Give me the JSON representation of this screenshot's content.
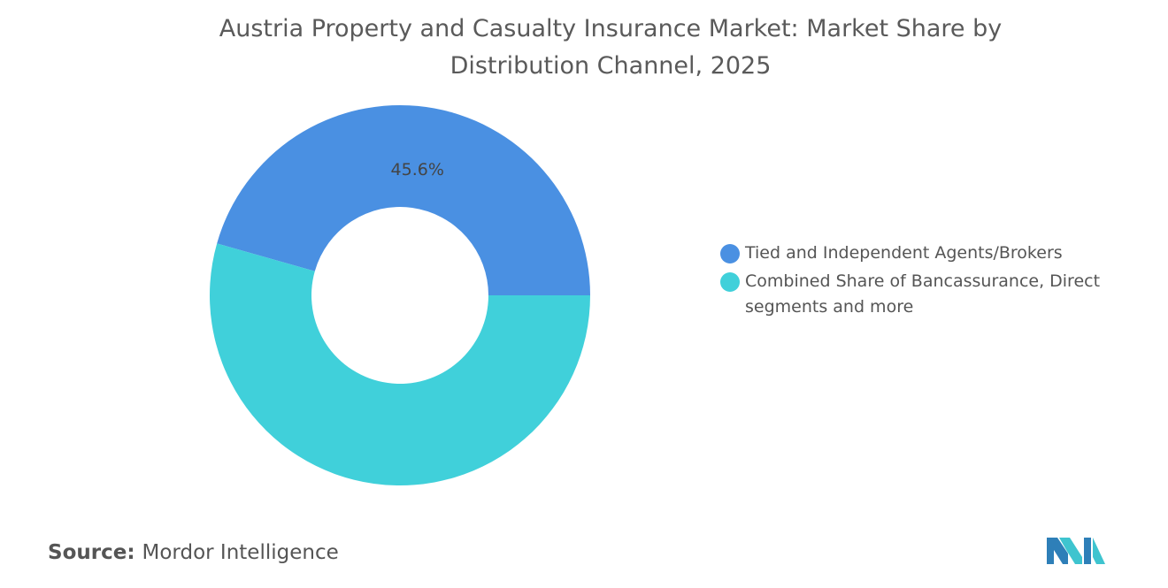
{
  "chart_data": {
    "type": "donut",
    "title": "Austria Property and Casualty Insurance Market: Market Share by Distribution Channel, 2025",
    "categories": [
      "Tied and Independent Agents/Brokers",
      "Combined Share of Bancassurance, Direct segments and more"
    ],
    "values": [
      45.6,
      54.4
    ],
    "value_labels": [
      "45.6%",
      null
    ],
    "colors": [
      "#4a90e2",
      "#40d0da"
    ],
    "legend": "right"
  },
  "source": {
    "label": "Source:",
    "text": "Mordor Intelligence"
  }
}
